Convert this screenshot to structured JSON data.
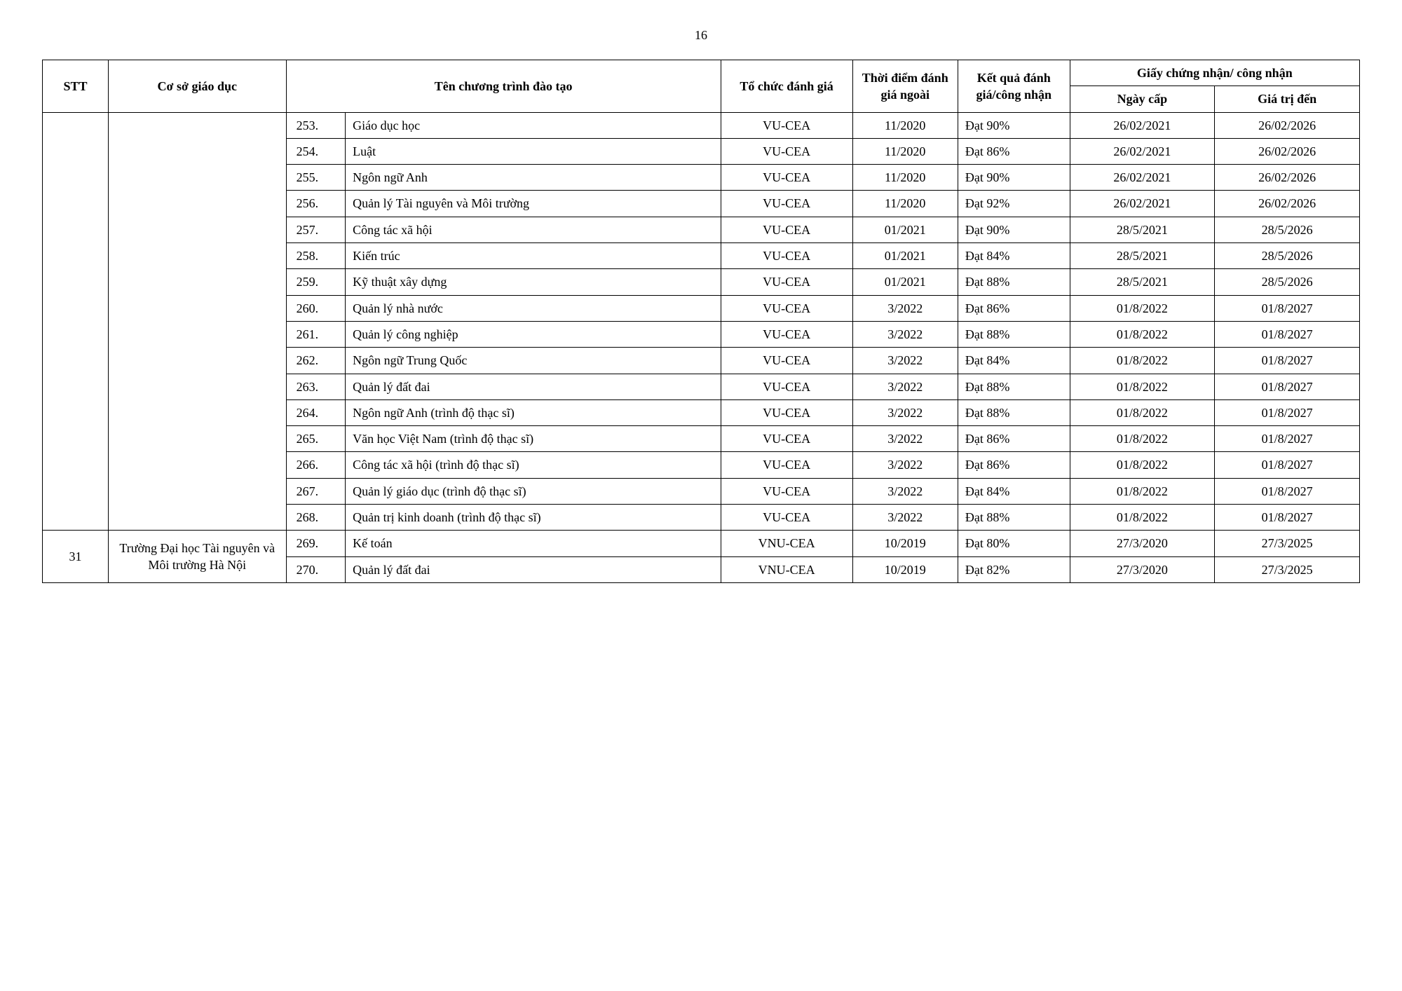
{
  "page_number": "16",
  "headers": {
    "stt": "STT",
    "institution": "Cơ sở giáo dục",
    "program": "Tên chương trình đào tạo",
    "organization": "Tổ chức đánh giá",
    "eval_time": "Thời điểm đánh giá ngoài",
    "result": "Kết quả đánh giá/công nhận",
    "certificate": "Giấy chứng nhận/ công nhận",
    "issue_date": "Ngày cấp",
    "valid_until": "Giá trị đến"
  },
  "group1": {
    "stt": "",
    "institution": "",
    "rows": [
      {
        "idx": "253.",
        "program": "Giáo dục học",
        "org": "VU-CEA",
        "time": "11/2020",
        "result": "Đạt 90%",
        "issue": "26/02/2021",
        "valid": "26/02/2026"
      },
      {
        "idx": "254.",
        "program": "Luật",
        "org": "VU-CEA",
        "time": "11/2020",
        "result": "Đạt 86%",
        "issue": "26/02/2021",
        "valid": "26/02/2026"
      },
      {
        "idx": "255.",
        "program": "Ngôn ngữ Anh",
        "org": "VU-CEA",
        "time": "11/2020",
        "result": "Đạt 90%",
        "issue": "26/02/2021",
        "valid": "26/02/2026"
      },
      {
        "idx": "256.",
        "program": "Quản lý Tài nguyên và Môi trường",
        "org": "VU-CEA",
        "time": "11/2020",
        "result": "Đạt 92%",
        "issue": "26/02/2021",
        "valid": "26/02/2026"
      },
      {
        "idx": "257.",
        "program": "Công tác xã hội",
        "org": "VU-CEA",
        "time": "01/2021",
        "result": "Đạt 90%",
        "issue": "28/5/2021",
        "valid": "28/5/2026"
      },
      {
        "idx": "258.",
        "program": "Kiến trúc",
        "org": "VU-CEA",
        "time": "01/2021",
        "result": "Đạt 84%",
        "issue": "28/5/2021",
        "valid": "28/5/2026"
      },
      {
        "idx": "259.",
        "program": "Kỹ thuật xây dựng",
        "org": "VU-CEA",
        "time": "01/2021",
        "result": "Đạt 88%",
        "issue": "28/5/2021",
        "valid": "28/5/2026"
      },
      {
        "idx": "260.",
        "program": "Quản lý nhà nước",
        "org": "VU-CEA",
        "time": "3/2022",
        "result": "Đạt 86%",
        "issue": "01/8/2022",
        "valid": "01/8/2027"
      },
      {
        "idx": "261.",
        "program": "Quản lý công nghiệp",
        "org": "VU-CEA",
        "time": "3/2022",
        "result": "Đạt 88%",
        "issue": "01/8/2022",
        "valid": "01/8/2027"
      },
      {
        "idx": "262.",
        "program": "Ngôn ngữ Trung Quốc",
        "org": "VU-CEA",
        "time": "3/2022",
        "result": "Đạt 84%",
        "issue": "01/8/2022",
        "valid": "01/8/2027"
      },
      {
        "idx": "263.",
        "program": "Quản lý đất đai",
        "org": "VU-CEA",
        "time": "3/2022",
        "result": "Đạt 88%",
        "issue": "01/8/2022",
        "valid": "01/8/2027"
      },
      {
        "idx": "264.",
        "program": "Ngôn ngữ Anh (trình độ thạc sĩ)",
        "org": "VU-CEA",
        "time": "3/2022",
        "result": "Đạt 88%",
        "issue": "01/8/2022",
        "valid": "01/8/2027"
      },
      {
        "idx": "265.",
        "program": "Văn học Việt Nam (trình độ thạc sĩ)",
        "org": "VU-CEA",
        "time": "3/2022",
        "result": "Đạt 86%",
        "issue": "01/8/2022",
        "valid": "01/8/2027"
      },
      {
        "idx": "266.",
        "program": "Công tác xã hội (trình độ thạc sĩ)",
        "org": "VU-CEA",
        "time": "3/2022",
        "result": "Đạt 86%",
        "issue": "01/8/2022",
        "valid": "01/8/2027"
      },
      {
        "idx": "267.",
        "program": "Quản lý giáo dục (trình độ thạc sĩ)",
        "org": "VU-CEA",
        "time": "3/2022",
        "result": "Đạt 84%",
        "issue": "01/8/2022",
        "valid": "01/8/2027"
      },
      {
        "idx": "268.",
        "program": "Quản trị kinh doanh (trình độ thạc sĩ)",
        "org": "VU-CEA",
        "time": "3/2022",
        "result": "Đạt 88%",
        "issue": "01/8/2022",
        "valid": "01/8/2027"
      }
    ]
  },
  "group2": {
    "stt": "31",
    "institution": "Trường Đại học Tài nguyên và Môi trường Hà Nội",
    "rows": [
      {
        "idx": "269.",
        "program": "Kế toán",
        "org": "VNU-CEA",
        "time": "10/2019",
        "result": "Đạt 80%",
        "issue": "27/3/2020",
        "valid": "27/3/2025"
      },
      {
        "idx": "270.",
        "program": "Quản lý đất đai",
        "org": "VNU-CEA",
        "time": "10/2019",
        "result": "Đạt 82%",
        "issue": "27/3/2020",
        "valid": "27/3/2025"
      }
    ]
  }
}
